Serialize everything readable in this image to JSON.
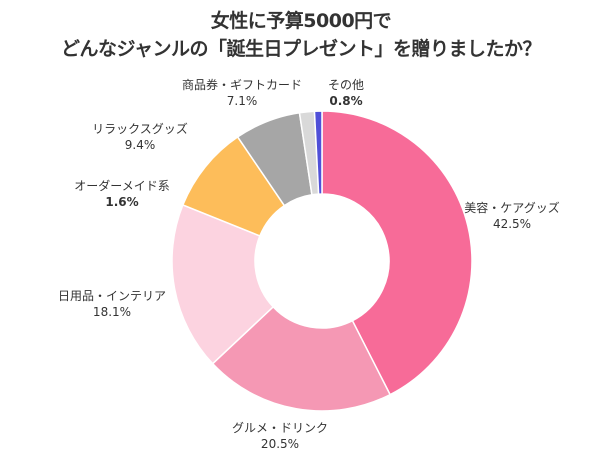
{
  "chart_data": {
    "type": "pie",
    "donut": true,
    "title_lines": [
      "女性に予算5000円で",
      "どんなジャンルの「誕生日プレゼント」を贈りましたか？"
    ],
    "unit": "%",
    "slices": [
      {
        "label": "美容・ケアグッズ",
        "value": 42.5,
        "display": "42.5%",
        "color": "#f76b98"
      },
      {
        "label": "グルメ・ドリンク",
        "value": 20.5,
        "display": "20.5%",
        "color": "#f598b4"
      },
      {
        "label": "日用品・インテリア",
        "value": 18.1,
        "display": "18.1%",
        "color": "#fcd3e0"
      },
      {
        "label": "リラックスグッズ",
        "value": 9.4,
        "display": "9.4%",
        "color": "#fdbd5a"
      },
      {
        "label": "商品券・ギフトカード",
        "value": 7.1,
        "display": "7.1%",
        "color": "#a6a6a6"
      },
      {
        "label": "オーダーメイド系",
        "value": 1.6,
        "display": "1.6%",
        "color": "#d9d9d9"
      },
      {
        "label": "その他",
        "value": 0.8,
        "display": "0.8%",
        "color": "#5050d8"
      }
    ],
    "start": "top",
    "direction": "clockwise"
  }
}
